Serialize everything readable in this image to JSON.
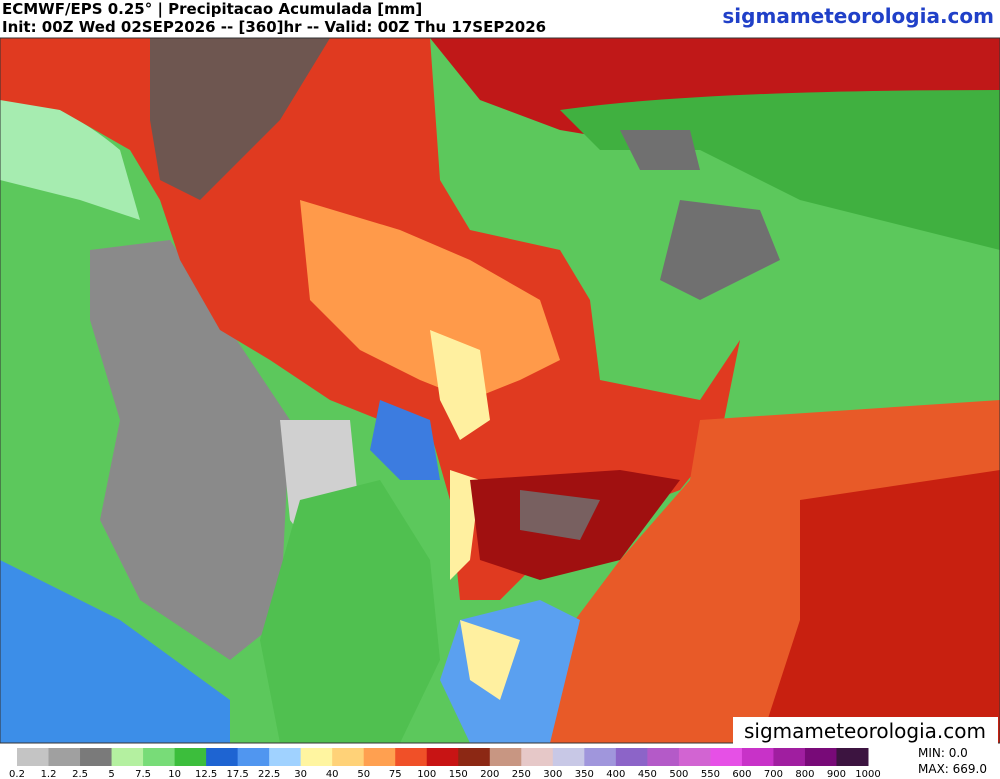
{
  "header": {
    "title": "ECMWF/EPS 0.25° | Precipitacao Acumulada [mm]",
    "subtitle": "Init: 00Z Wed 02SEP2026 -- [360]hr -- Valid: 00Z Thu 17SEP2026",
    "site": "sigmameteorologia.com"
  },
  "watermark": "sigmameteorologia.com",
  "colorbar": {
    "labels": [
      "0.2",
      "1.2",
      "2.5",
      "5",
      "7.5",
      "10",
      "12.5",
      "17.5",
      "22.5",
      "30",
      "40",
      "50",
      "75",
      "100",
      "150",
      "200",
      "250",
      "300",
      "350",
      "400",
      "450",
      "500",
      "550",
      "600",
      "700",
      "800",
      "900",
      "1000"
    ],
    "colors": [
      "#c4c4c4",
      "#a0a0a0",
      "#7a7a7a",
      "#b4f0a0",
      "#78dc78",
      "#3cbe3c",
      "#1e64d2",
      "#5096f0",
      "#a0d2ff",
      "#fff5a0",
      "#ffd278",
      "#ffa050",
      "#f05028",
      "#c81414",
      "#8c2814",
      "#c89682",
      "#e6c8c8",
      "#c8c8e6",
      "#a096dc",
      "#8c64c8",
      "#b45ac8",
      "#d264d2",
      "#e650e6",
      "#c832c8",
      "#a01ea0",
      "#780a78",
      "#3c1440"
    ]
  },
  "stats": {
    "min": "MIN: 0.0",
    "max": "MAX: 669.0"
  }
}
